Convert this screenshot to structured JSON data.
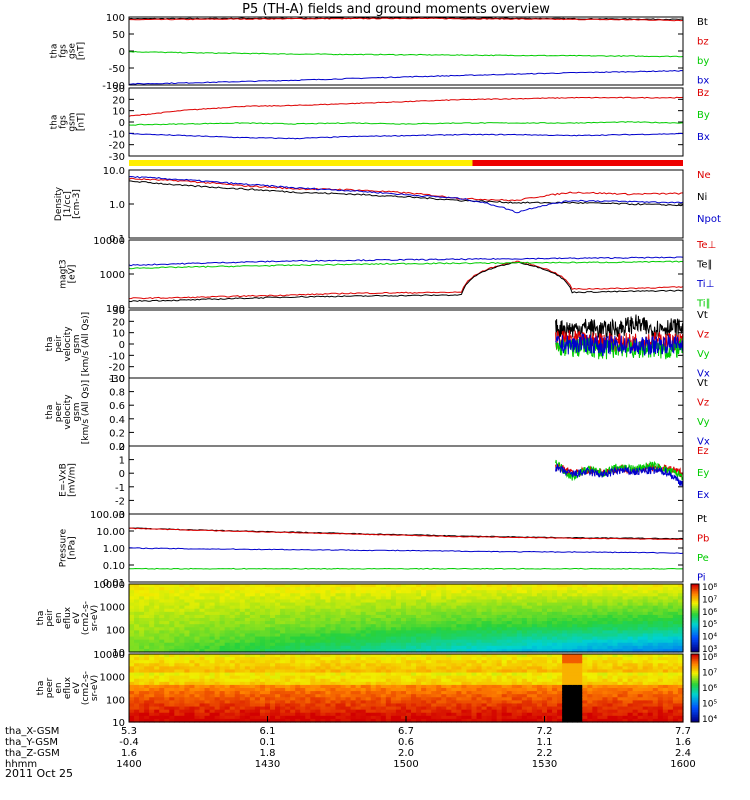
{
  "title": "P5 (TH-A) fields and ground moments overview",
  "date": "2011 Oct 25",
  "colors": {
    "black": "#000000",
    "red": "#dd0000",
    "green": "#00cc00",
    "blue": "#0000cc",
    "yellow": "#ffee00",
    "bar_red": "#ee0000"
  },
  "chart_data": [
    {
      "type": "line",
      "id": "fgs_gse",
      "ylabel": [
        "tha",
        "fgs",
        "gse",
        "[nT]"
      ],
      "ylim": [
        -100,
        100
      ],
      "yticks": [
        "100",
        "50",
        "0",
        "-50",
        "-100"
      ],
      "series": [
        {
          "name": "Bt",
          "color": "#000000",
          "values": [
            95,
            95,
            96,
            96,
            97,
            97,
            97,
            96,
            95,
            94,
            93
          ]
        },
        {
          "name": "bz",
          "color": "#dd0000",
          "values": [
            92,
            93,
            94,
            95,
            95,
            96,
            95,
            94,
            93,
            92,
            90
          ]
        },
        {
          "name": "by",
          "color": "#00cc00",
          "values": [
            -2,
            -5,
            -7,
            -9,
            -10,
            -11,
            -12,
            -13,
            -14,
            -15,
            -16
          ]
        },
        {
          "name": "bx",
          "color": "#0000cc",
          "values": [
            -97,
            -94,
            -90,
            -86,
            -81,
            -76,
            -72,
            -68,
            -64,
            -61,
            -58
          ]
        }
      ]
    },
    {
      "type": "line",
      "id": "fgs_gsm",
      "ylabel": [
        "tha",
        "fgs",
        "gsm",
        "[nT]"
      ],
      "ylim": [
        -35,
        35
      ],
      "yticks": [
        "30",
        "20",
        "10",
        "0",
        "-10",
        "-20",
        "-30"
      ],
      "series": [
        {
          "name": "Bz",
          "color": "#dd0000",
          "values": [
            6,
            12,
            16,
            17,
            19,
            21,
            23,
            24,
            25,
            25,
            25
          ]
        },
        {
          "name": "By",
          "color": "#00cc00",
          "values": [
            -3,
            -2,
            -1,
            -2,
            -1,
            -2,
            -1,
            -1,
            -1,
            0,
            -1
          ]
        },
        {
          "name": "Bx",
          "color": "#0000cc",
          "values": [
            -12,
            -14,
            -16,
            -17,
            -15,
            -14,
            -13,
            -13,
            -14,
            -13,
            -12
          ]
        }
      ]
    },
    {
      "type": "line",
      "id": "density",
      "scale": "log",
      "ylabel": [
        "Density",
        "[1/cc]",
        "[cm-3]"
      ],
      "ylim": [
        0.1,
        12
      ],
      "yticks": [
        "10.0",
        "1.0",
        "0.1"
      ],
      "series": [
        {
          "name": "Ne",
          "color": "#dd0000",
          "values": [
            6.5,
            5.5,
            4.0,
            3.2,
            3.0,
            2.4,
            1.6,
            1.4,
            2.5,
            2.2,
            2.3
          ]
        },
        {
          "name": "Ni",
          "color": "#000000",
          "values": [
            5.5,
            4.0,
            3.2,
            2.5,
            2.2,
            1.8,
            1.4,
            1.2,
            1.2,
            1.1,
            1.0
          ]
        },
        {
          "name": "Npot",
          "color": "#0000cc",
          "values": [
            7.5,
            6.0,
            4.5,
            3.4,
            2.8,
            2.1,
            1.6,
            0.6,
            1.4,
            1.3,
            1.2
          ]
        }
      ]
    },
    {
      "type": "line",
      "id": "temperature",
      "scale": "log",
      "ylabel": [
        "magt3",
        "[eV]"
      ],
      "ylim": [
        30,
        12000
      ],
      "yticks": [
        "10000",
        "1000",
        "100"
      ],
      "series": [
        {
          "name": "Te⊥",
          "color": "#dd0000",
          "values": [
            70,
            75,
            85,
            95,
            110,
            115,
            120,
            1800,
            160,
            170,
            190
          ]
        },
        {
          "name": "Te∥",
          "color": "#000000",
          "values": [
            55,
            60,
            70,
            80,
            85,
            90,
            95,
            1700,
            120,
            130,
            140
          ]
        },
        {
          "name": "Ti⊥",
          "color": "#0000cc",
          "values": [
            1300,
            1500,
            1700,
            1900,
            2000,
            2100,
            2200,
            2300,
            2400,
            2500,
            2600
          ]
        },
        {
          "name": "Ti∥",
          "color": "#00cc00",
          "values": [
            1000,
            1100,
            1200,
            1300,
            1400,
            1500,
            1550,
            1600,
            1650,
            1700,
            1800
          ]
        }
      ]
    },
    {
      "type": "line",
      "id": "peir_velocity",
      "ylabel": [
        "tha",
        "peir",
        "velocity",
        "gsm",
        "[km/s (All Qs)]"
      ],
      "ylim": [
        -30,
        30
      ],
      "yticks": [
        "30",
        "20",
        "10",
        "0",
        "-10",
        "-20",
        "-30"
      ],
      "start_fraction": 0.77,
      "series": [
        {
          "name": "Vt",
          "color": "#000000",
          "values": [
            14,
            13,
            15,
            12,
            14,
            18,
            13,
            15,
            14
          ]
        },
        {
          "name": "Vz",
          "color": "#dd0000",
          "values": [
            3,
            4,
            2,
            3,
            1,
            2,
            3,
            2,
            2
          ]
        },
        {
          "name": "Vy",
          "color": "#00cc00",
          "values": [
            -2,
            -4,
            -3,
            -6,
            -3,
            -5,
            -4,
            -6,
            -3
          ]
        },
        {
          "name": "Vx",
          "color": "#0000cc",
          "values": [
            0,
            -1,
            1,
            -2,
            0,
            -3,
            -1,
            0,
            -1
          ]
        }
      ]
    },
    {
      "type": "line",
      "id": "peer_velocity",
      "ylabel": [
        "tha",
        "peer",
        "velocity",
        "gsm",
        "[km/s (All Qs)]"
      ],
      "ylim": [
        0,
        1
      ],
      "yticks": [
        "1.0",
        "0.8",
        "0.6",
        "0.4",
        "0.2",
        "0.0"
      ],
      "series": [
        {
          "name": "Vt",
          "color": "#000000",
          "values": []
        },
        {
          "name": "Vz",
          "color": "#dd0000",
          "values": []
        },
        {
          "name": "Vy",
          "color": "#00cc00",
          "values": []
        },
        {
          "name": "Vx",
          "color": "#0000cc",
          "values": []
        }
      ]
    },
    {
      "type": "line",
      "id": "efield",
      "ylabel": [
        "E=-VxB",
        "[mV/m]"
      ],
      "ylim": [
        -3,
        2
      ],
      "yticks": [
        "2",
        "1",
        "0",
        "-1",
        "-2",
        "-3"
      ],
      "start_fraction": 0.77,
      "series": [
        {
          "name": "Ez",
          "color": "#dd0000",
          "values": [
            0.6,
            0.0,
            0.2,
            0.1,
            0.3,
            0.2,
            0.4,
            0.3,
            0.0
          ]
        },
        {
          "name": "Ey",
          "color": "#00cc00",
          "values": [
            0.8,
            -0.3,
            0.3,
            0.0,
            0.5,
            0.3,
            0.6,
            0.2,
            -0.2
          ]
        },
        {
          "name": "Ex",
          "color": "#0000cc",
          "values": [
            0.4,
            -0.1,
            0.1,
            -0.1,
            0.2,
            0.1,
            0.2,
            0.1,
            -0.8
          ]
        }
      ]
    },
    {
      "type": "line",
      "id": "pressure",
      "scale": "log",
      "ylabel": [
        "Pressure",
        "[nPa]"
      ],
      "ylim": [
        0.01,
        100
      ],
      "yticks": [
        "100.00",
        "10.00",
        "1.00",
        "0.10",
        "0.01"
      ],
      "series": [
        {
          "name": "Pt",
          "color": "#000000",
          "values": [
            15,
            12,
            10,
            8.5,
            7,
            6,
            5,
            4.5,
            4,
            3.8,
            3.5
          ]
        },
        {
          "name": "Pb",
          "color": "#dd0000",
          "values": [
            14.5,
            11.5,
            9.5,
            8,
            6.6,
            5.6,
            4.6,
            4.2,
            3.7,
            3.5,
            3.2
          ]
        },
        {
          "name": "Pe",
          "color": "#00cc00",
          "values": [
            0.06,
            0.06,
            0.06,
            0.06,
            0.06,
            0.06,
            0.06,
            0.06,
            0.06,
            0.06,
            0.06
          ]
        },
        {
          "name": "Pi",
          "color": "#0000cc",
          "values": [
            1.0,
            0.9,
            0.85,
            0.8,
            0.75,
            0.7,
            0.65,
            0.6,
            0.58,
            0.55,
            0.5
          ]
        }
      ]
    },
    {
      "type": "heatmap",
      "id": "peir_spectrogram",
      "ylabel": [
        "tha",
        "peir",
        "en",
        "eflux",
        "eV",
        "(cm2-s-",
        "sr-eV)"
      ],
      "yticks": [
        "10000",
        "1000",
        "100",
        "10"
      ],
      "colorbar": [
        "10⁸",
        "10⁷",
        "10⁶",
        "10⁵",
        "10⁴",
        "10³"
      ]
    },
    {
      "type": "heatmap",
      "id": "peer_spectrogram",
      "ylabel": [
        "tha",
        "peer",
        "en",
        "eflux",
        "eV",
        "(cm2-s-",
        "sr-eV)"
      ],
      "yticks": [
        "10000",
        "1000",
        "100",
        "10"
      ],
      "colorbar": [
        "10⁸",
        "10⁷",
        "10⁶",
        "10⁵",
        "10⁴"
      ]
    }
  ],
  "x_axis": {
    "row_labels": [
      "tha_X-GSM",
      "tha_Y-GSM",
      "tha_Z-GSM",
      "hhmm"
    ],
    "columns": [
      [
        "5.3",
        "-0.4",
        "1.6",
        "1400"
      ],
      [
        "6.1",
        "0.1",
        "1.8",
        "1430"
      ],
      [
        "6.7",
        "0.6",
        "2.0",
        "1500"
      ],
      [
        "7.2",
        "1.1",
        "2.2",
        "1530"
      ],
      [
        "7.7",
        "1.6",
        "2.4",
        "1600"
      ]
    ]
  },
  "mode_bar": {
    "segments": [
      {
        "color": "#ffee00",
        "from": 0.0,
        "to": 0.62
      },
      {
        "color": "#ee0000",
        "from": 0.62,
        "to": 1.0
      }
    ]
  }
}
